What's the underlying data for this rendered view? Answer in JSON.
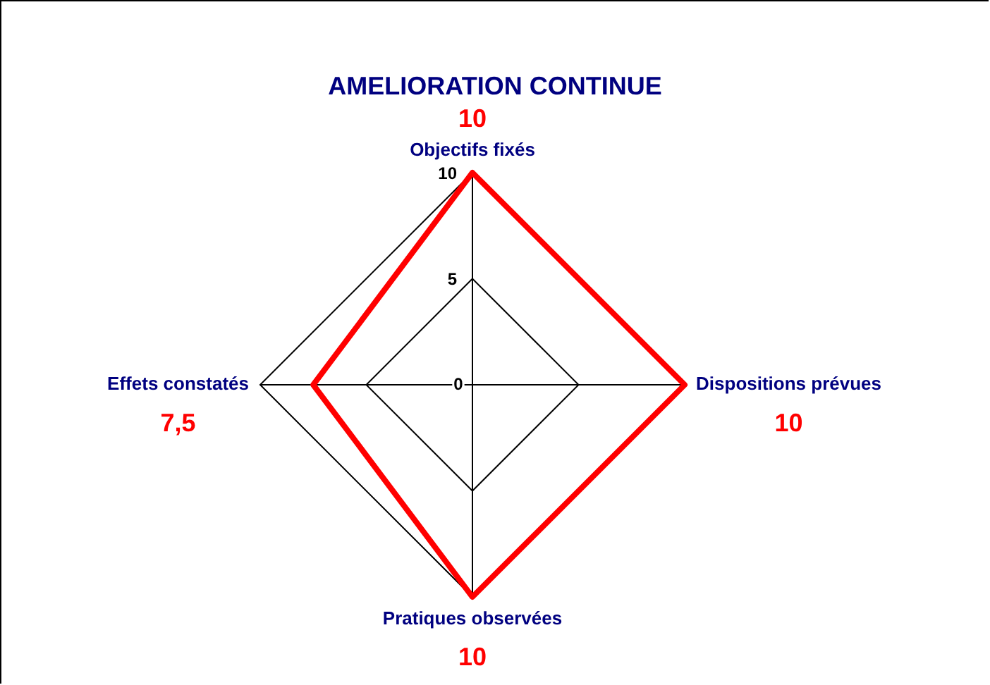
{
  "chart_data": {
    "type": "radar",
    "title": "AMELIORATION CONTINUE",
    "categories": [
      "Objectifs fixés",
      "Dispositions prévues",
      "Pratiques observées",
      "Effets constatés"
    ],
    "series": [
      {
        "color": "#ff0000",
        "values": [
          10,
          10,
          10,
          7.5
        ]
      }
    ],
    "value_labels": [
      "10",
      "10",
      "10",
      "7,5"
    ],
    "ylim": [
      0,
      10
    ],
    "yticks": [
      0,
      5,
      10
    ],
    "grid": true,
    "legend": false,
    "marker": "none",
    "line_style": "solid"
  }
}
